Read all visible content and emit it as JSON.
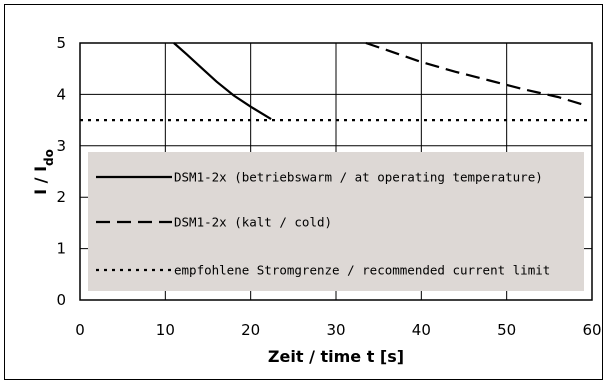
{
  "chart_data": {
    "type": "line",
    "xlabel": "Zeit / time t [s]",
    "ylabel_main": "I / I",
    "ylabel_sub": "do",
    "xlim": [
      0,
      60
    ],
    "ylim": [
      0,
      5
    ],
    "xticks": [
      "0",
      "10",
      "20",
      "30",
      "40",
      "50",
      "60"
    ],
    "yticks": [
      "0",
      "1",
      "2",
      "3",
      "4",
      "5"
    ],
    "grid": true,
    "legend_placement": "center",
    "series": [
      {
        "name": "DSM1-2x (betriebswarm / at operating temperature)",
        "style": "solid",
        "x": [
          11,
          12.5,
          14,
          16,
          18,
          20,
          22.4
        ],
        "y": [
          5.0,
          4.78,
          4.55,
          4.25,
          3.98,
          3.76,
          3.52
        ]
      },
      {
        "name": "DSM1-2x (kalt / cold)",
        "style": "dashed",
        "x": [
          33.5,
          36,
          40,
          44,
          48,
          52,
          56,
          59
        ],
        "y": [
          5.0,
          4.86,
          4.63,
          4.44,
          4.27,
          4.1,
          3.95,
          3.8
        ]
      },
      {
        "name": "empfohlene Stromgrenze / recommended current limit",
        "style": "dotted",
        "x": [
          0,
          60
        ],
        "y": [
          3.5,
          3.5
        ]
      }
    ]
  },
  "colors": {
    "legend_bg": "#ddd8d5",
    "line": "#000000",
    "grid": "#000000"
  }
}
